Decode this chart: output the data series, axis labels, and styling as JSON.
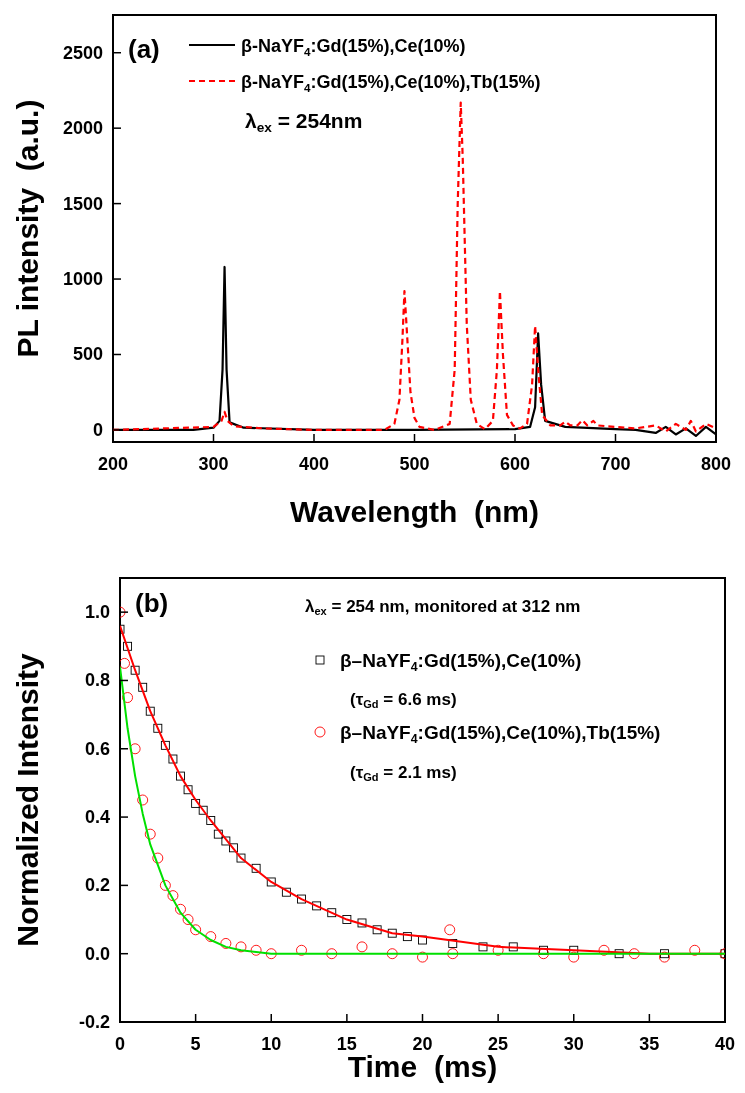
{
  "chart_data": [
    {
      "type": "line",
      "xlabel": "Wavelength  (nm)",
      "ylabel": "PL intensity  (a.u.)",
      "xlim": [
        200,
        800
      ],
      "ylim": [
        -80,
        2750
      ],
      "xticks": [
        200,
        300,
        400,
        500,
        600,
        700,
        800
      ],
      "yticks": [
        0,
        500,
        1000,
        1500,
        2000,
        2500
      ],
      "legend": "top left",
      "annotations": [
        "(a)",
        "λ$_{ex}$ = 254nm"
      ],
      "series": [
        {
          "name": "β-NaYF$_{4}$:Gd(15%),Ce(10%)",
          "color": "#000000",
          "line_style": "solid",
          "x": [
            200,
            280,
            300,
            306,
            309,
            311,
            313,
            316,
            330,
            400,
            500,
            600,
            615,
            620,
            623,
            626,
            630,
            650,
            700,
            720,
            740,
            750,
            760,
            770,
            780,
            790,
            800
          ],
          "values": [
            0,
            0,
            15,
            60,
            400,
            1080,
            400,
            50,
            15,
            0,
            0,
            5,
            20,
            150,
            640,
            300,
            60,
            20,
            5,
            0,
            -20,
            20,
            -30,
            10,
            -40,
            20,
            -30
          ]
        },
        {
          "name": "β-NaYF$_{4}$:Gd(15%),Ce(10%),Tb(15%)",
          "color": "#ff0000",
          "line_style": "dashed",
          "x": [
            200,
            300,
            308,
            311,
            314,
            320,
            350,
            400,
            470,
            480,
            485,
            488,
            490,
            492,
            496,
            500,
            505,
            520,
            535,
            540,
            543,
            546,
            548,
            552,
            556,
            562,
            570,
            578,
            582,
            585,
            588,
            592,
            598,
            605,
            612,
            617,
            620,
            623,
            627,
            635,
            645,
            650,
            655,
            662,
            667,
            672,
            678,
            682,
            700,
            720,
            740,
            750,
            760,
            770,
            775,
            780,
            790,
            800
          ],
          "values": [
            0,
            20,
            60,
            120,
            60,
            25,
            10,
            0,
            0,
            40,
            200,
            600,
            920,
            700,
            250,
            80,
            20,
            0,
            40,
            400,
            1500,
            2170,
            1800,
            700,
            200,
            40,
            5,
            60,
            400,
            920,
            500,
            100,
            30,
            10,
            40,
            300,
            690,
            400,
            100,
            30,
            30,
            55,
            30,
            30,
            65,
            30,
            60,
            30,
            20,
            10,
            30,
            -10,
            40,
            0,
            60,
            -10,
            40,
            10
          ]
        }
      ]
    },
    {
      "type": "scatter",
      "xlabel": "Time  (ms)",
      "ylabel": "Normalized Intensity",
      "xlim": [
        0,
        40
      ],
      "ylim": [
        -0.2,
        1.1
      ],
      "xticks": [
        0,
        5,
        10,
        15,
        20,
        25,
        30,
        35,
        40
      ],
      "yticks": [
        {
          "value": -0.2,
          "label": "-0.2"
        },
        {
          "value": 0,
          "label": "0.0"
        },
        {
          "value": 0.2,
          "label": "0.2"
        },
        {
          "value": 0.4,
          "label": "0.4"
        },
        {
          "value": 0.6,
          "label": "0.6"
        },
        {
          "value": 0.8,
          "label": "0.8"
        },
        {
          "value": 1,
          "label": "1.0"
        }
      ],
      "legend": "top right",
      "annotations": [
        "(b)",
        "λ$_{ex}$ = 254 nm, monitored at 312 nm",
        "(τ$_{Gd}$ = 6.6 ms)",
        "(τ$_{Gd}$ = 2.1 ms)"
      ],
      "series": [
        {
          "name": "β–NaYF$_{4}$:Gd(15%),Ce(10%)",
          "color": "#000000",
          "marker": "square",
          "x": [
            0,
            0.5,
            1,
            1.5,
            2,
            2.5,
            3,
            3.5,
            4,
            4.5,
            5,
            5.5,
            6,
            6.5,
            7,
            7.5,
            8,
            9,
            10,
            11,
            12,
            13,
            14,
            15,
            16,
            17,
            18,
            19,
            20,
            22,
            24,
            26,
            28,
            30,
            33,
            36,
            40
          ],
          "values": [
            0.95,
            0.9,
            0.83,
            0.78,
            0.71,
            0.66,
            0.61,
            0.57,
            0.52,
            0.48,
            0.44,
            0.42,
            0.39,
            0.35,
            0.33,
            0.31,
            0.28,
            0.25,
            0.21,
            0.18,
            0.16,
            0.14,
            0.12,
            0.1,
            0.09,
            0.07,
            0.06,
            0.05,
            0.04,
            0.03,
            0.02,
            0.02,
            0.01,
            0.01,
            0,
            0,
            0
          ]
        },
        {
          "name": "β–NaYF$_{4}$:Gd(15%),Ce(10%),Tb(15%)",
          "color": "#ff0000",
          "marker": "circle",
          "x": [
            0,
            0.3,
            0.5,
            1,
            1.5,
            2,
            2.5,
            3,
            3.5,
            4,
            4.5,
            5,
            6,
            7,
            8,
            9,
            10,
            12,
            14,
            16,
            18,
            20,
            21.8,
            22,
            25,
            28,
            30,
            32,
            34,
            36,
            38,
            40
          ],
          "values": [
            1,
            0.85,
            0.75,
            0.6,
            0.45,
            0.35,
            0.28,
            0.2,
            0.17,
            0.13,
            0.1,
            0.07,
            0.05,
            0.03,
            0.02,
            0.01,
            0,
            0.01,
            0,
            0.02,
            0,
            -0.01,
            0.07,
            0,
            0.01,
            0,
            -0.01,
            0.01,
            0,
            -0.01,
            0.01,
            0
          ]
        },
        {
          "type": "line",
          "color": "#ff0000",
          "line_style": "solid",
          "x": [
            0,
            1,
            2,
            3,
            4,
            5,
            6,
            8,
            10,
            12,
            15,
            18,
            20,
            25,
            30,
            35,
            40
          ],
          "values": [
            0.96,
            0.83,
            0.71,
            0.61,
            0.52,
            0.45,
            0.39,
            0.28,
            0.21,
            0.16,
            0.1,
            0.06,
            0.05,
            0.02,
            0.01,
            0,
            0
          ]
        },
        {
          "type": "line",
          "color": "#00e000",
          "line_style": "solid",
          "x": [
            0,
            0.5,
            1,
            1.5,
            2,
            3,
            4,
            5,
            6,
            7,
            8,
            10,
            20,
            40
          ],
          "values": [
            0.84,
            0.66,
            0.52,
            0.41,
            0.32,
            0.2,
            0.12,
            0.07,
            0.04,
            0.02,
            0.01,
            0,
            0,
            0
          ]
        }
      ]
    }
  ]
}
